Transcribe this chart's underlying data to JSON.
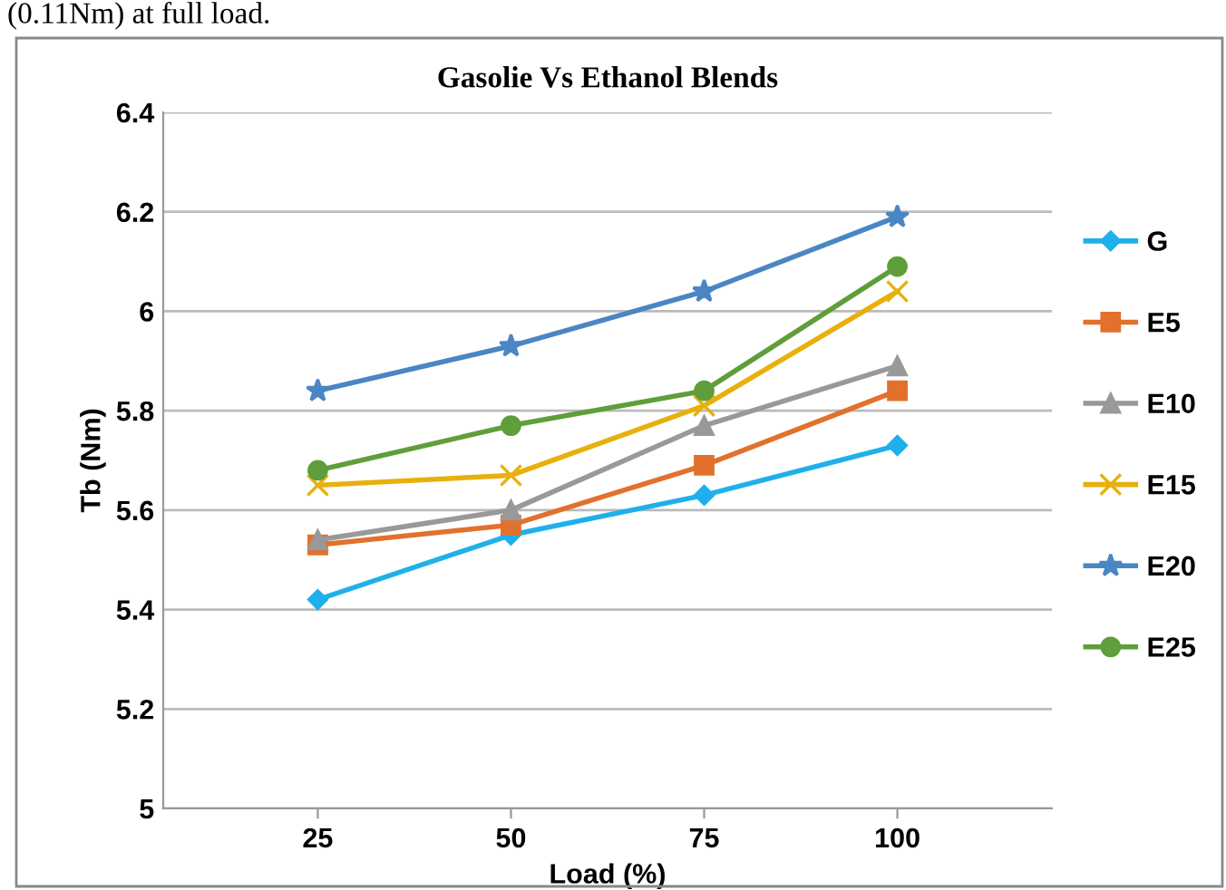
{
  "chart_data": {
    "type": "line",
    "title": "Gasolie Vs Ethanol Blends",
    "xlabel": "Load (%)",
    "ylabel": "Tb (Nm)",
    "annotations": [
      "(0.11Nm) at full load."
    ],
    "categories": [
      "25",
      "50",
      "75",
      "100"
    ],
    "ylim": [
      5,
      6.4
    ],
    "yticks": [
      5,
      5.2,
      5.4,
      5.6,
      5.8,
      6,
      6.2,
      6.4
    ],
    "grid": "y",
    "legend": "right",
    "series": [
      {
        "name": "G",
        "color": "#1fb0ec",
        "marker": "diamond",
        "values": [
          5.42,
          5.55,
          5.63,
          5.73
        ]
      },
      {
        "name": "E5",
        "color": "#e2712d",
        "marker": "square",
        "values": [
          5.53,
          5.57,
          5.69,
          5.84
        ]
      },
      {
        "name": "E10",
        "color": "#999999",
        "marker": "triangle",
        "values": [
          5.54,
          5.6,
          5.77,
          5.89
        ]
      },
      {
        "name": "E15",
        "color": "#e8b00c",
        "marker": "cross",
        "values": [
          5.65,
          5.67,
          5.81,
          6.04
        ]
      },
      {
        "name": "E20",
        "color": "#4a86c3",
        "marker": "star",
        "values": [
          5.84,
          5.93,
          6.04,
          6.19
        ]
      },
      {
        "name": "E25",
        "color": "#5f9e3b",
        "marker": "circle",
        "values": [
          5.68,
          5.77,
          5.84,
          6.09
        ]
      }
    ]
  }
}
